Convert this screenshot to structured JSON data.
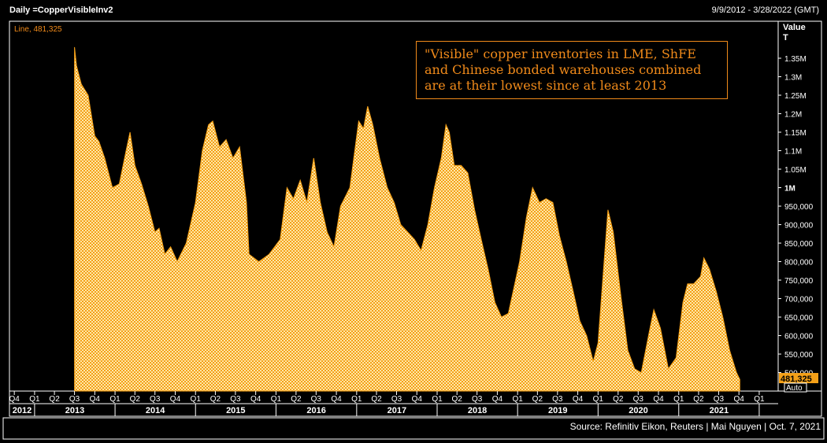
{
  "header": {
    "left": "Daily =CopperVisibleInv2",
    "right": "9/9/2012 - 3/28/2022 (GMT)"
  },
  "legend_label": "Line, 481,325",
  "annotation": "\"Visible\" copper inventories in LME, ShFE and Chinese bonded warehouses combined are at their lowest since at least 2013",
  "axis_header": {
    "line1": "Value",
    "line2": "T"
  },
  "last_value_label": "481,325",
  "auto_label": "Auto",
  "footer": "Source: Refinitiv Eikon, Reuters | Mai Nguyen | Oct. 7, 2021",
  "colors": {
    "fill": "#f4a018",
    "fill_alt": "#ffe8a8",
    "accent": "#f08a1a",
    "background": "#000000",
    "frame": "#ffffff"
  },
  "chart_data": {
    "type": "area",
    "series": [
      {
        "name": "Line",
        "points": [
          [
            "2013-07-01",
            1380000
          ],
          [
            "2013-07-10",
            1330000
          ],
          [
            "2013-08-01",
            1280000
          ],
          [
            "2013-09-01",
            1250000
          ],
          [
            "2013-10-01",
            1140000
          ],
          [
            "2013-10-20",
            1125000
          ],
          [
            "2013-11-15",
            1080000
          ],
          [
            "2013-12-20",
            1000000
          ],
          [
            "2014-01-20",
            1010000
          ],
          [
            "2014-02-20",
            1100000
          ],
          [
            "2014-03-10",
            1150000
          ],
          [
            "2014-04-01",
            1060000
          ],
          [
            "2014-05-01",
            1010000
          ],
          [
            "2014-06-01",
            950000
          ],
          [
            "2014-07-01",
            880000
          ],
          [
            "2014-07-20",
            890000
          ],
          [
            "2014-08-15",
            820000
          ],
          [
            "2014-09-10",
            840000
          ],
          [
            "2014-10-10",
            800000
          ],
          [
            "2014-11-20",
            850000
          ],
          [
            "2015-01-01",
            960000
          ],
          [
            "2015-02-01",
            1100000
          ],
          [
            "2015-03-01",
            1170000
          ],
          [
            "2015-03-20",
            1180000
          ],
          [
            "2015-04-20",
            1110000
          ],
          [
            "2015-05-20",
            1130000
          ],
          [
            "2015-06-20",
            1080000
          ],
          [
            "2015-07-20",
            1110000
          ],
          [
            "2015-08-20",
            960000
          ],
          [
            "2015-09-01",
            820000
          ],
          [
            "2015-10-15",
            800000
          ],
          [
            "2015-12-01",
            820000
          ],
          [
            "2016-01-20",
            860000
          ],
          [
            "2016-02-20",
            1000000
          ],
          [
            "2016-03-20",
            970000
          ],
          [
            "2016-04-20",
            1020000
          ],
          [
            "2016-05-20",
            960000
          ],
          [
            "2016-06-20",
            1080000
          ],
          [
            "2016-07-20",
            960000
          ],
          [
            "2016-08-20",
            880000
          ],
          [
            "2016-09-20",
            840000
          ],
          [
            "2016-10-20",
            950000
          ],
          [
            "2016-12-01",
            1000000
          ],
          [
            "2017-01-10",
            1180000
          ],
          [
            "2017-02-01",
            1160000
          ],
          [
            "2017-02-20",
            1220000
          ],
          [
            "2017-03-15",
            1170000
          ],
          [
            "2017-04-15",
            1080000
          ],
          [
            "2017-05-20",
            1000000
          ],
          [
            "2017-06-20",
            960000
          ],
          [
            "2017-07-20",
            900000
          ],
          [
            "2017-08-20",
            880000
          ],
          [
            "2017-09-20",
            860000
          ],
          [
            "2017-10-20",
            830000
          ],
          [
            "2017-11-20",
            900000
          ],
          [
            "2017-12-20",
            1000000
          ],
          [
            "2018-01-20",
            1080000
          ],
          [
            "2018-02-10",
            1170000
          ],
          [
            "2018-02-25",
            1150000
          ],
          [
            "2018-03-20",
            1060000
          ],
          [
            "2018-04-20",
            1060000
          ],
          [
            "2018-05-20",
            1040000
          ],
          [
            "2018-06-20",
            940000
          ],
          [
            "2018-07-20",
            860000
          ],
          [
            "2018-08-20",
            780000
          ],
          [
            "2018-09-20",
            690000
          ],
          [
            "2018-10-20",
            650000
          ],
          [
            "2018-11-20",
            660000
          ],
          [
            "2019-01-10",
            800000
          ],
          [
            "2019-02-10",
            920000
          ],
          [
            "2019-03-10",
            1000000
          ],
          [
            "2019-04-10",
            960000
          ],
          [
            "2019-05-10",
            970000
          ],
          [
            "2019-06-10",
            960000
          ],
          [
            "2019-07-10",
            870000
          ],
          [
            "2019-08-10",
            800000
          ],
          [
            "2019-09-10",
            720000
          ],
          [
            "2019-10-10",
            640000
          ],
          [
            "2019-11-10",
            600000
          ],
          [
            "2019-12-10",
            530000
          ],
          [
            "2020-01-01",
            580000
          ],
          [
            "2020-02-15",
            940000
          ],
          [
            "2020-03-10",
            880000
          ],
          [
            "2020-04-15",
            700000
          ],
          [
            "2020-05-15",
            560000
          ],
          [
            "2020-06-15",
            510000
          ],
          [
            "2020-07-15",
            500000
          ],
          [
            "2020-08-20",
            610000
          ],
          [
            "2020-09-10",
            670000
          ],
          [
            "2020-10-10",
            620000
          ],
          [
            "2020-11-15",
            510000
          ],
          [
            "2020-12-20",
            540000
          ],
          [
            "2021-01-20",
            690000
          ],
          [
            "2021-02-10",
            740000
          ],
          [
            "2021-03-10",
            740000
          ],
          [
            "2021-04-10",
            760000
          ],
          [
            "2021-04-25",
            810000
          ],
          [
            "2021-05-20",
            780000
          ],
          [
            "2021-06-20",
            720000
          ],
          [
            "2021-07-20",
            650000
          ],
          [
            "2021-08-20",
            560000
          ],
          [
            "2021-09-20",
            500000
          ],
          [
            "2021-10-05",
            481325
          ]
        ]
      }
    ],
    "ylim": [
      450000,
      1450000
    ],
    "y_ticks": [
      {
        "value": 500000,
        "label": "500,000"
      },
      {
        "value": 550000,
        "label": "550,000"
      },
      {
        "value": 600000,
        "label": "600,000"
      },
      {
        "value": 650000,
        "label": "650,000"
      },
      {
        "value": 700000,
        "label": "700,000"
      },
      {
        "value": 750000,
        "label": "750,000"
      },
      {
        "value": 800000,
        "label": "800,000"
      },
      {
        "value": 850000,
        "label": "850,000"
      },
      {
        "value": 900000,
        "label": "900,000"
      },
      {
        "value": 950000,
        "label": "950,000"
      },
      {
        "value": 1000000,
        "label": "1M",
        "bold": true
      },
      {
        "value": 1050000,
        "label": "1.05M"
      },
      {
        "value": 1100000,
        "label": "1.1M"
      },
      {
        "value": 1150000,
        "label": "1.15M"
      },
      {
        "value": 1200000,
        "label": "1.2M"
      },
      {
        "value": 1250000,
        "label": "1.25M"
      },
      {
        "value": 1300000,
        "label": "1.3M"
      },
      {
        "value": 1350000,
        "label": "1.35M"
      }
    ],
    "x_start": "2012-09-09",
    "x_end": "2022-03-28",
    "quarter_ticks": [
      {
        "date": "2012-10-01",
        "label": "Q4"
      },
      {
        "date": "2013-01-01",
        "label": "Q1"
      },
      {
        "date": "2013-04-01",
        "label": "Q2"
      },
      {
        "date": "2013-07-01",
        "label": "Q3"
      },
      {
        "date": "2013-10-01",
        "label": "Q4"
      },
      {
        "date": "2014-01-01",
        "label": "Q1"
      },
      {
        "date": "2014-04-01",
        "label": "Q2"
      },
      {
        "date": "2014-07-01",
        "label": "Q3"
      },
      {
        "date": "2014-10-01",
        "label": "Q4"
      },
      {
        "date": "2015-01-01",
        "label": "Q1"
      },
      {
        "date": "2015-04-01",
        "label": "Q2"
      },
      {
        "date": "2015-07-01",
        "label": "Q3"
      },
      {
        "date": "2015-10-01",
        "label": "Q4"
      },
      {
        "date": "2016-01-01",
        "label": "Q1"
      },
      {
        "date": "2016-04-01",
        "label": "Q2"
      },
      {
        "date": "2016-07-01",
        "label": "Q3"
      },
      {
        "date": "2016-10-01",
        "label": "Q4"
      },
      {
        "date": "2017-01-01",
        "label": "Q1"
      },
      {
        "date": "2017-04-01",
        "label": "Q2"
      },
      {
        "date": "2017-07-01",
        "label": "Q3"
      },
      {
        "date": "2017-10-01",
        "label": "Q4"
      },
      {
        "date": "2018-01-01",
        "label": "Q1"
      },
      {
        "date": "2018-04-01",
        "label": "Q2"
      },
      {
        "date": "2018-07-01",
        "label": "Q3"
      },
      {
        "date": "2018-10-01",
        "label": "Q4"
      },
      {
        "date": "2019-01-01",
        "label": "Q1"
      },
      {
        "date": "2019-04-01",
        "label": "Q2"
      },
      {
        "date": "2019-07-01",
        "label": "Q3"
      },
      {
        "date": "2019-10-01",
        "label": "Q4"
      },
      {
        "date": "2020-01-01",
        "label": "Q1"
      },
      {
        "date": "2020-04-01",
        "label": "Q2"
      },
      {
        "date": "2020-07-01",
        "label": "Q3"
      },
      {
        "date": "2020-10-01",
        "label": "Q4"
      },
      {
        "date": "2021-01-01",
        "label": "Q1"
      },
      {
        "date": "2021-04-01",
        "label": "Q2"
      },
      {
        "date": "2021-07-01",
        "label": "Q3"
      },
      {
        "date": "2021-10-01",
        "label": "Q4"
      },
      {
        "date": "2022-01-01",
        "label": "Q1"
      }
    ],
    "year_labels": [
      {
        "year": "2012",
        "label": "2012"
      },
      {
        "year": "2013",
        "label": "2013"
      },
      {
        "year": "2014",
        "label": "2014"
      },
      {
        "year": "2015",
        "label": "2015"
      },
      {
        "year": "2016",
        "label": "2016"
      },
      {
        "year": "2017",
        "label": "2017"
      },
      {
        "year": "2018",
        "label": "2018"
      },
      {
        "year": "2019",
        "label": "2019"
      },
      {
        "year": "2020",
        "label": "2020"
      },
      {
        "year": "2021",
        "label": "2021"
      }
    ],
    "grid": false,
    "legend": "top-left"
  }
}
